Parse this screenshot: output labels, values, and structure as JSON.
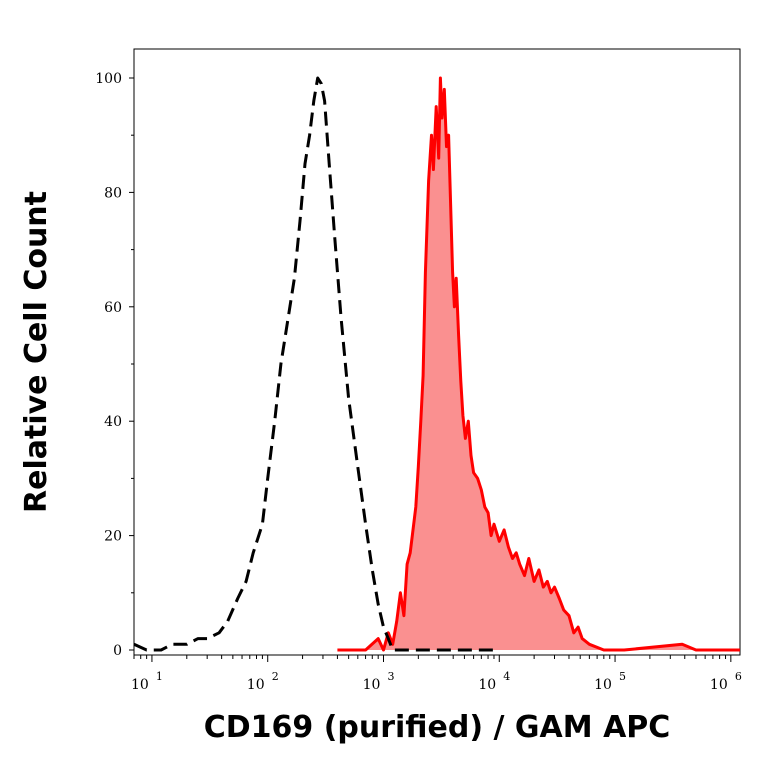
{
  "chart_data": {
    "type": "area",
    "xlabel": "CD169 (purified) / GAM APC",
    "ylabel": "Relative Cell Count",
    "x_scale": "log",
    "xlim": [
      7,
      1200000
    ],
    "ylim": [
      0,
      100
    ],
    "y_ticks": [
      0,
      20,
      40,
      60,
      80,
      100
    ],
    "x_ticks": [
      {
        "value": 10,
        "base": "10",
        "exp": "1"
      },
      {
        "value": 100,
        "base": "10",
        "exp": "2"
      },
      {
        "value": 1000,
        "base": "10",
        "exp": "3"
      },
      {
        "value": 10000,
        "base": "10",
        "exp": "4"
      },
      {
        "value": 100000,
        "base": "10",
        "exp": "5"
      },
      {
        "value": 1000000,
        "base": "10",
        "exp": "6"
      }
    ],
    "series": [
      {
        "style": "dashed",
        "color": "#000000",
        "fill": "none",
        "x": [
          7,
          9,
          12,
          15,
          20,
          25,
          30,
          38,
          45,
          55,
          65,
          75,
          90,
          100,
          115,
          130,
          150,
          170,
          190,
          210,
          230,
          250,
          270,
          290,
          310,
          340,
          380,
          430,
          500,
          600,
          700,
          800,
          900,
          1000,
          1100,
          1200,
          1500,
          2000,
          3000,
          10000
        ],
        "y": [
          1,
          0,
          0,
          1,
          1,
          2,
          2,
          3,
          5,
          9,
          12,
          17,
          22,
          30,
          40,
          50,
          58,
          65,
          75,
          85,
          90,
          96,
          100,
          99,
          96,
          85,
          72,
          58,
          44,
          32,
          22,
          14,
          8,
          4,
          2,
          0,
          0,
          0,
          0,
          0
        ]
      },
      {
        "style": "solid",
        "color": "#ff0000",
        "fill": "#fa9090",
        "x": [
          400,
          700,
          900,
          1000,
          1100,
          1200,
          1300,
          1400,
          1500,
          1600,
          1700,
          1800,
          1900,
          2000,
          2100,
          2200,
          2300,
          2450,
          2600,
          2700,
          2850,
          3000,
          3100,
          3200,
          3350,
          3500,
          3650,
          3800,
          3950,
          4100,
          4250,
          4450,
          4650,
          4850,
          5100,
          5400,
          5700,
          6000,
          6500,
          7000,
          7500,
          8000,
          8500,
          9000,
          10000,
          11000,
          12000,
          13000,
          14000,
          15000,
          16500,
          18000,
          20000,
          22000,
          24000,
          26000,
          28000,
          30000,
          33000,
          36000,
          40000,
          44000,
          48000,
          52000,
          60000,
          80000,
          120000,
          380000,
          500000,
          1200000
        ],
        "y": [
          0,
          0,
          2,
          0,
          3,
          1,
          5,
          10,
          6,
          15,
          17,
          21,
          25,
          32,
          40,
          48,
          66,
          82,
          90,
          84,
          95,
          86,
          100,
          93,
          98,
          88,
          90,
          78,
          66,
          60,
          65,
          55,
          47,
          41,
          37,
          40,
          34,
          31,
          30,
          28,
          25,
          24,
          20,
          22,
          19,
          21,
          18,
          16,
          17,
          15,
          13,
          16,
          12,
          14,
          11,
          12,
          10,
          11,
          9,
          7,
          6,
          3,
          4,
          2,
          1,
          0,
          0,
          1,
          0,
          0
        ]
      }
    ]
  }
}
